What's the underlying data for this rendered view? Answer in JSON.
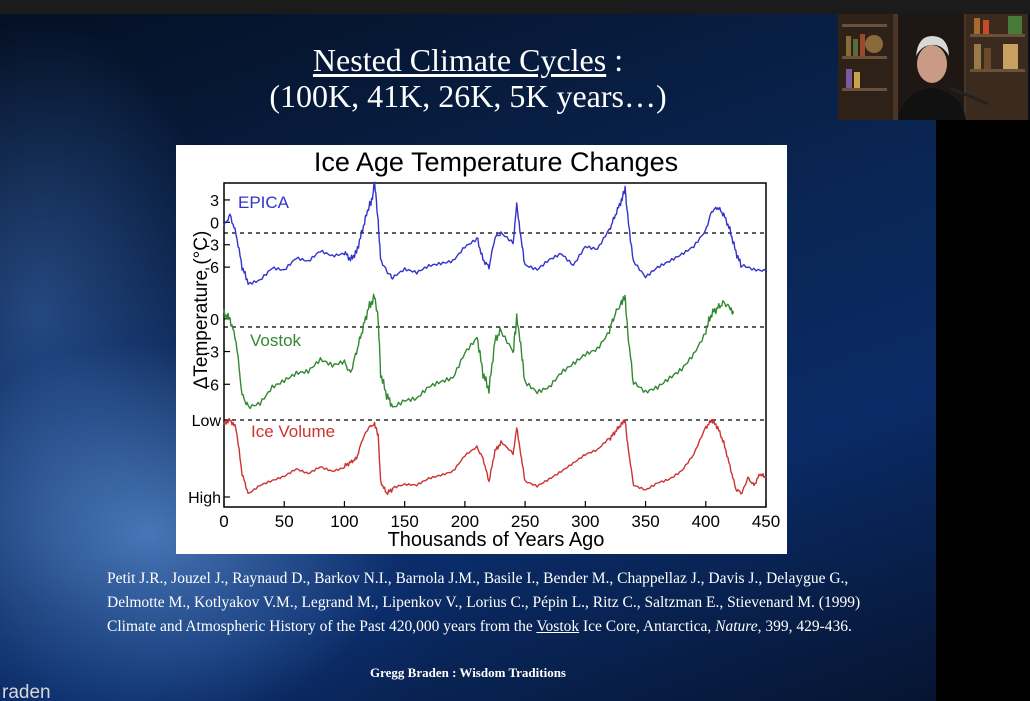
{
  "title": {
    "line1": "Nested Climate Cycles",
    "colon": " :",
    "line2": "(100K, 41K, 26K, 5K years…)"
  },
  "chart_data": {
    "type": "line",
    "title": "Ice Age Temperature Changes",
    "xlabel": "Thousands of Years Ago",
    "ylabel": "ΔTemperature (°C)",
    "xlim": [
      0,
      450
    ],
    "xticks": [
      "0",
      "50",
      "100",
      "150",
      "200",
      "250",
      "300",
      "350",
      "400",
      "450"
    ],
    "panels": [
      {
        "name": "EPICA",
        "color": "#3333cc",
        "ylim": [
          -10,
          5
        ],
        "yticks": [
          "3",
          "0",
          "-3",
          "-6"
        ],
        "x": [
          0,
          5,
          10,
          15,
          20,
          30,
          40,
          50,
          60,
          70,
          80,
          90,
          100,
          105,
          110,
          115,
          120,
          123,
          125,
          128,
          130,
          135,
          140,
          150,
          160,
          170,
          180,
          190,
          200,
          210,
          215,
          220,
          225,
          230,
          240,
          243,
          247,
          250,
          260,
          270,
          280,
          290,
          300,
          310,
          320,
          325,
          330,
          333,
          335,
          340,
          350,
          360,
          370,
          380,
          390,
          400,
          405,
          410,
          415,
          420,
          425,
          430,
          440,
          450
        ],
        "y": [
          -0.5,
          1,
          -1.5,
          -6,
          -8,
          -7.5,
          -6,
          -6.5,
          -5,
          -5.5,
          -4,
          -4.5,
          -4,
          -5,
          -4,
          -1,
          2,
          3,
          5.5,
          0,
          -5,
          -6.5,
          -7.5,
          -6.5,
          -7,
          -6,
          -5.5,
          -5,
          -3,
          -2,
          -5,
          -6,
          -2,
          -1.5,
          -3,
          2.5,
          -2.5,
          -6,
          -6.5,
          -5,
          -4,
          -5.5,
          -3,
          -3.5,
          -1,
          1,
          3,
          4.5,
          1,
          -5.5,
          -7.5,
          -6,
          -5,
          -4,
          -3,
          -1,
          1.5,
          2,
          1,
          -1,
          -4,
          -6,
          -6.5,
          -6.5
        ]
      },
      {
        "name": "Vostok",
        "color": "#338833",
        "ylim": [
          -9,
          2
        ],
        "yticks": [
          "0",
          "-3",
          "-6"
        ],
        "x": [
          0,
          5,
          10,
          15,
          20,
          30,
          40,
          50,
          60,
          70,
          80,
          90,
          100,
          105,
          110,
          115,
          120,
          125,
          128,
          130,
          135,
          140,
          150,
          160,
          170,
          180,
          190,
          200,
          210,
          215,
          220,
          225,
          230,
          240,
          243,
          247,
          250,
          260,
          270,
          280,
          290,
          300,
          310,
          320,
          325,
          330,
          333,
          335,
          340,
          350,
          360,
          370,
          380,
          390,
          400,
          405,
          410,
          415,
          420,
          423
        ],
        "y": [
          0.5,
          0,
          -2,
          -7,
          -8,
          -7.5,
          -6,
          -5.5,
          -5,
          -5,
          -4,
          -4.5,
          -4,
          -5,
          -3,
          -1,
          1,
          2,
          0,
          -5,
          -7,
          -8,
          -7.5,
          -7.5,
          -6.5,
          -6,
          -5.5,
          -3,
          -1.5,
          -5,
          -6.5,
          -2,
          -1,
          -3,
          0,
          -3,
          -6,
          -7,
          -6.5,
          -5,
          -4,
          -3,
          -2.5,
          -1,
          0.5,
          1.5,
          2,
          -1,
          -6,
          -7,
          -6.5,
          -5.5,
          -4.5,
          -3,
          -1,
          0.5,
          1,
          1.5,
          1,
          0.5
        ]
      },
      {
        "name": "Ice Volume",
        "color": "#cc3333",
        "ylim": [
          0,
          1
        ],
        "yticks": [
          "Low",
          "High"
        ],
        "x": [
          0,
          5,
          10,
          15,
          20,
          30,
          40,
          50,
          60,
          70,
          80,
          90,
          100,
          105,
          110,
          115,
          120,
          125,
          128,
          130,
          135,
          140,
          150,
          160,
          170,
          180,
          190,
          200,
          210,
          215,
          220,
          225,
          230,
          240,
          243,
          247,
          250,
          260,
          270,
          280,
          290,
          300,
          310,
          320,
          325,
          330,
          333,
          335,
          340,
          350,
          360,
          370,
          380,
          390,
          400,
          405,
          410,
          415,
          420,
          425,
          430,
          435,
          440,
          445,
          450
        ],
        "y": [
          0.05,
          0,
          0.1,
          0.7,
          0.95,
          0.85,
          0.8,
          0.75,
          0.65,
          0.7,
          0.6,
          0.65,
          0.6,
          0.55,
          0.5,
          0.25,
          0.1,
          0.05,
          0.2,
          0.8,
          0.95,
          0.9,
          0.85,
          0.85,
          0.75,
          0.7,
          0.65,
          0.45,
          0.35,
          0.5,
          0.8,
          0.4,
          0.3,
          0.45,
          0.1,
          0.5,
          0.8,
          0.85,
          0.75,
          0.65,
          0.55,
          0.45,
          0.4,
          0.25,
          0.15,
          0.05,
          0.0,
          0.3,
          0.85,
          0.9,
          0.8,
          0.75,
          0.65,
          0.45,
          0.1,
          0.0,
          0.1,
          0.3,
          0.6,
          0.9,
          0.95,
          0.75,
          0.85,
          0.7,
          0.75
        ]
      }
    ],
    "background": "#ffffff"
  },
  "citation": {
    "text1": "Petit J.R., Jouzel J., Raynaud D., Barkov N.I., Barnola J.M., Basile I., Bender M., Chappellaz J., Davis J., Delaygue G., Delmotte M., Kotlyakov V.M., Legrand M., Lipenkov V., Lorius C., Pépin L., Ritz C., Saltzman E., Stievenard M. (1999) Climate and Atmospheric History of the Past 420,000 years from the ",
    "underlined": "Vostok",
    "text2": " Ice Core, Antarctica, ",
    "journal": "Nature",
    "text3": ", 399, 429-436."
  },
  "credit": "Gregg Braden : Wisdom Traditions",
  "watermark": "raden",
  "colors": {
    "slide_bg": "#0a2552",
    "text": "#ffffff"
  }
}
